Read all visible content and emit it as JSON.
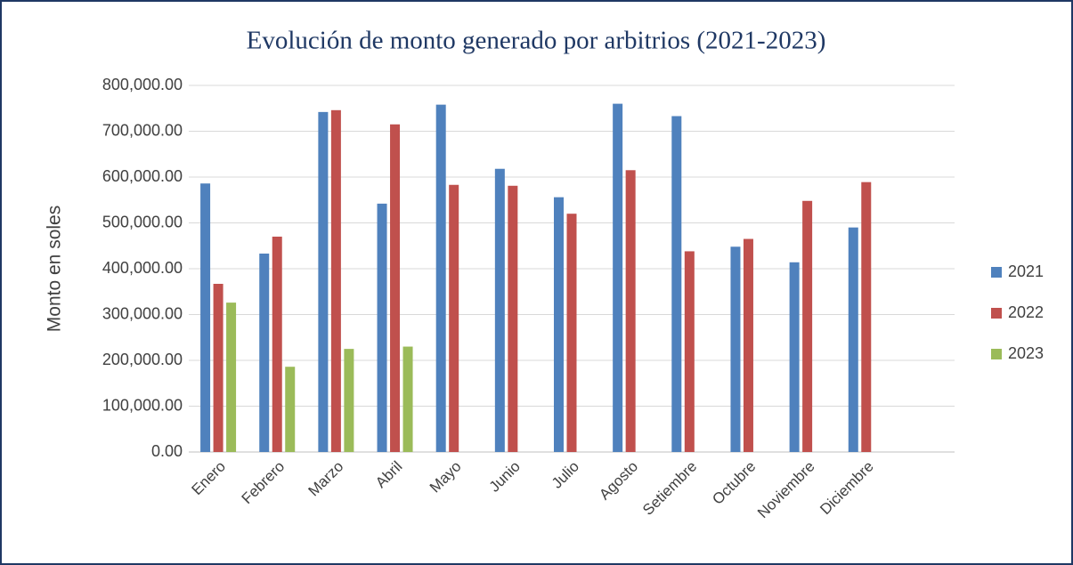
{
  "chart_data": {
    "type": "bar",
    "title": "Evolución de monto generado por arbitrios (2021-2023)",
    "y_label": "Monto en soles",
    "categories": [
      "Enero",
      "Febrero",
      "Marzo",
      "Abril",
      "Mayo",
      "Junio",
      "Julio",
      "Agosto",
      "Setiembre",
      "Octubre",
      "Noviembre",
      "Diciembre",
      null
    ],
    "series": [
      {
        "name": "2021",
        "color": "#4f81bd",
        "values": [
          586000,
          433000,
          742000,
          542000,
          758000,
          618000,
          556000,
          760000,
          733000,
          448000,
          414000,
          490000,
          null
        ]
      },
      {
        "name": "2022",
        "color": "#c0504d",
        "values": [
          367000,
          470000,
          746000,
          715000,
          583000,
          581000,
          520000,
          615000,
          438000,
          465000,
          548000,
          589000,
          null
        ]
      },
      {
        "name": "2023",
        "color": "#9bbb59",
        "values": [
          326000,
          186000,
          225000,
          230000,
          null,
          null,
          null,
          null,
          null,
          null,
          null,
          null,
          null
        ]
      }
    ],
    "ylim": [
      0,
      800000
    ],
    "yticks": [
      {
        "value": 0,
        "label": "0.00"
      },
      {
        "value": 100000,
        "label": "100,000.00"
      },
      {
        "value": 200000,
        "label": "200,000.00"
      },
      {
        "value": 300000,
        "label": "300,000.00"
      },
      {
        "value": 400000,
        "label": "400,000.00"
      },
      {
        "value": 500000,
        "label": "500,000.00"
      },
      {
        "value": 600000,
        "label": "600,000.00"
      },
      {
        "value": 700000,
        "label": "700,000.00"
      },
      {
        "value": 800000,
        "label": "800,000.00"
      }
    ],
    "grid": true,
    "legend": "right"
  }
}
